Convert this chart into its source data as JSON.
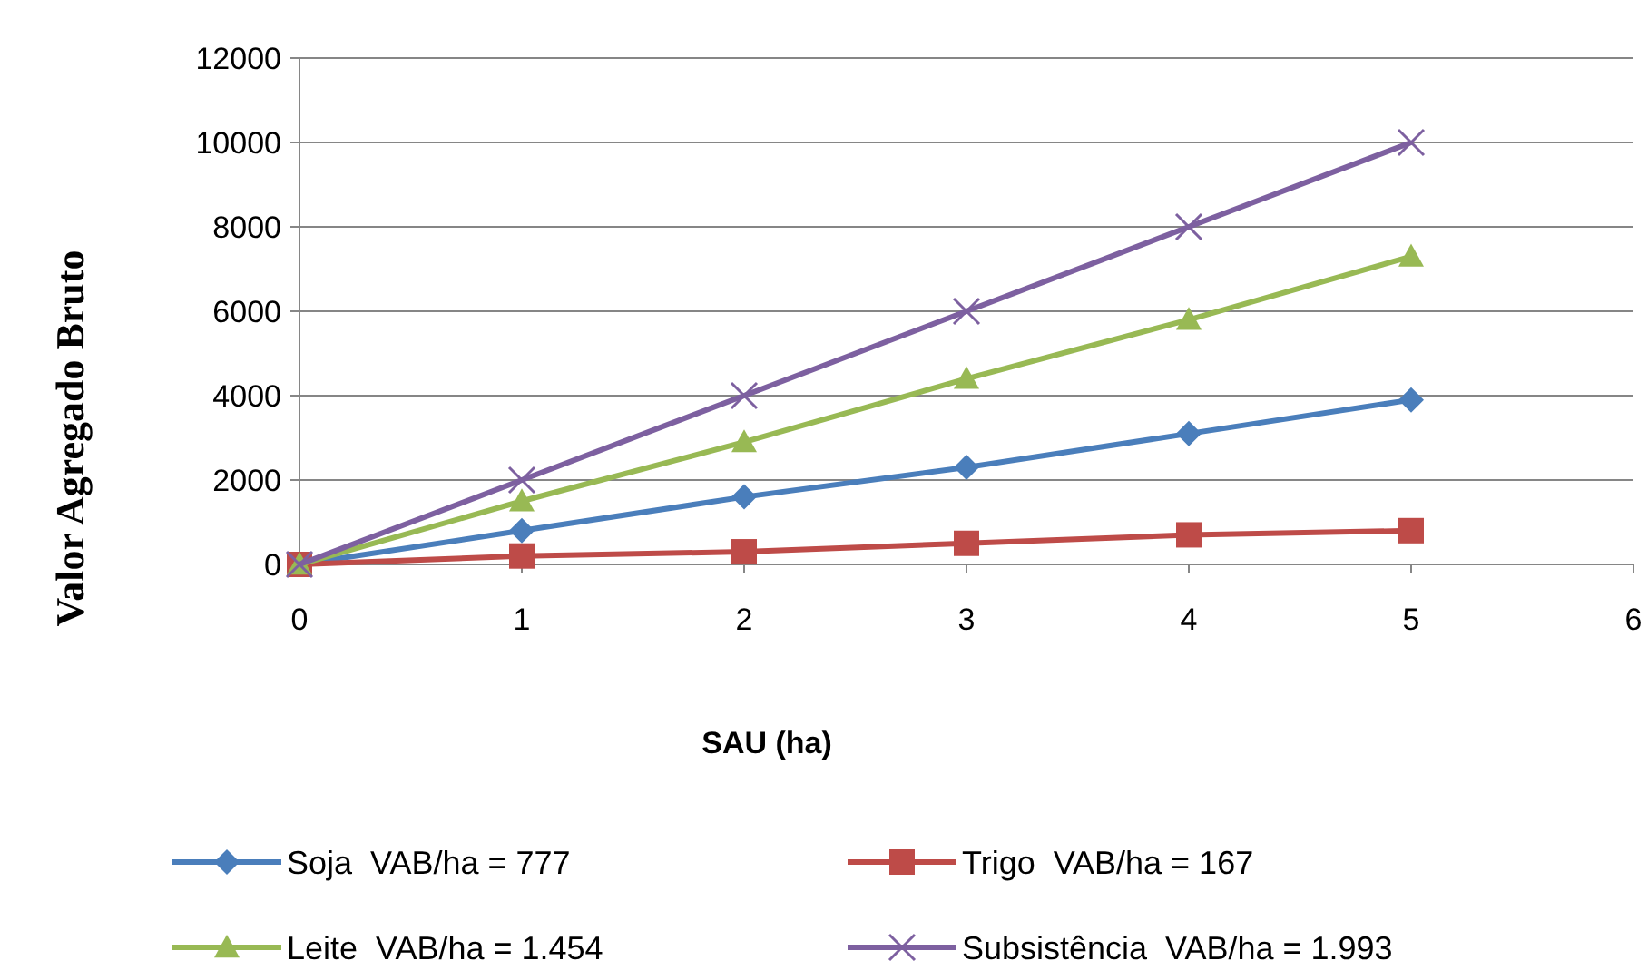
{
  "chart_data": {
    "type": "line",
    "xlabel": "SAU (ha)",
    "ylabel": "Valor Agregado Bruto",
    "x": [
      0,
      1,
      2,
      3,
      4,
      5
    ],
    "xlim": [
      0,
      6
    ],
    "xticks": [
      0,
      1,
      2,
      3,
      4,
      5,
      6
    ],
    "ylim": [
      0,
      12000
    ],
    "yticks": [
      0,
      2000,
      4000,
      6000,
      8000,
      10000,
      12000
    ],
    "grid": "y",
    "legend": "bottom",
    "series": [
      {
        "name": "Soja  VAB/ha = 777",
        "color": "#4a7ebb",
        "marker": "diamond",
        "values": [
          0,
          800,
          1600,
          2300,
          3100,
          3900
        ]
      },
      {
        "name": "Trigo  VAB/ha = 167",
        "color": "#be4b48",
        "marker": "square",
        "values": [
          0,
          200,
          300,
          500,
          700,
          800
        ]
      },
      {
        "name": "Leite  VAB/ha = 1.454",
        "color": "#98b954",
        "marker": "triangle",
        "values": [
          0,
          1500,
          2900,
          4400,
          5800,
          7300
        ]
      },
      {
        "name": "Subsistência  VAB/ha = 1.993",
        "color": "#7d60a0",
        "marker": "cross",
        "values": [
          0,
          2000,
          4000,
          6000,
          8000,
          10000
        ]
      }
    ]
  }
}
